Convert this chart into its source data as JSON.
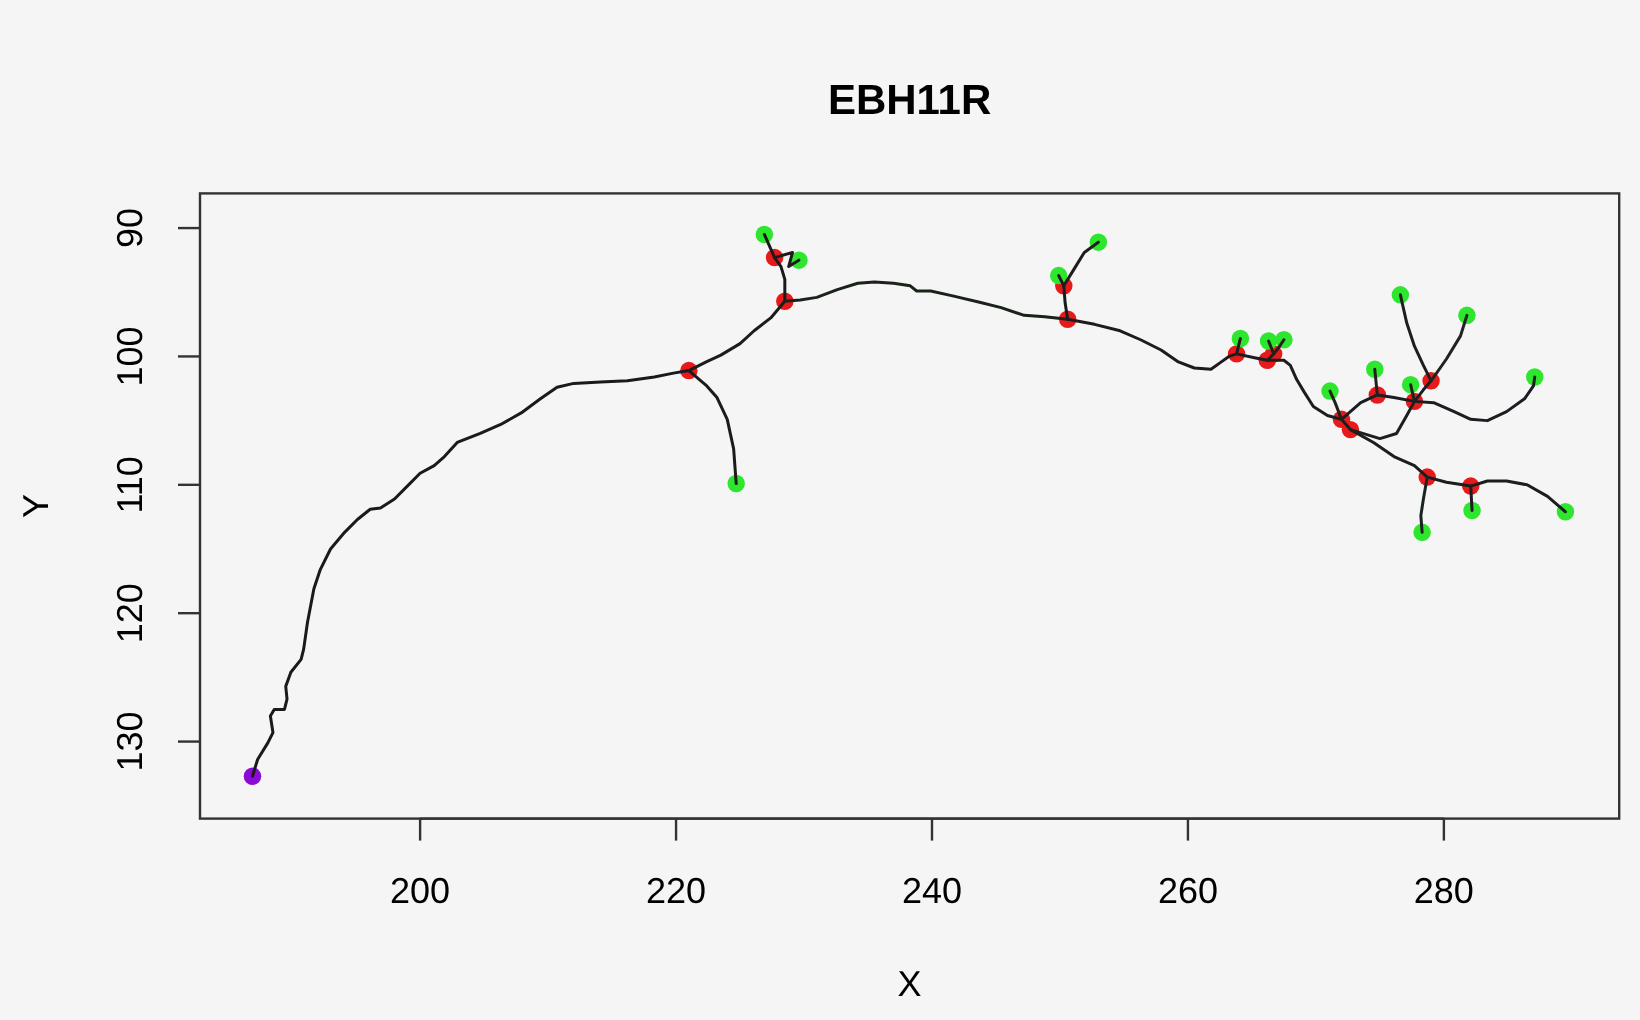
{
  "chart_data": {
    "type": "line",
    "title": "EBH11R",
    "xlabel": "X",
    "ylabel": "Y",
    "xlim": [
      182.8,
      293.7
    ],
    "ylim": [
      136.0,
      87.3
    ],
    "xticks": [
      200,
      220,
      240,
      260,
      280
    ],
    "yticks": [
      90,
      100,
      110,
      120,
      130
    ],
    "series": [
      {
        "color": "#1a1a1a",
        "x": [
          186.9,
          187.3,
          188.1,
          188.5,
          188.3,
          188.6,
          189.4,
          189.6,
          189.5,
          189.9,
          190.7,
          190.9,
          191.2,
          191.7,
          192.2,
          193.0,
          194.1,
          195.1,
          196.1,
          196.9,
          198.0,
          199.0,
          200.0,
          201.1,
          201.9,
          202.9,
          204.7,
          206.3,
          207.9,
          209.4,
          210.7,
          212.0,
          214.1,
          216.2,
          218.3,
          219.8,
          221.0
        ],
        "values": [
          132.7,
          131.4,
          130.1,
          129.3,
          128.0,
          127.5,
          127.5,
          126.7,
          125.7,
          124.6,
          123.6,
          122.8,
          120.7,
          118.1,
          116.6,
          115.0,
          113.7,
          112.7,
          111.9,
          111.8,
          111.1,
          110.1,
          109.1,
          108.5,
          107.8,
          106.7,
          106.0,
          105.3,
          104.4,
          103.3,
          102.4,
          102.1,
          102.0,
          101.9,
          101.6,
          101.3,
          101.1
        ]
      },
      {
        "color": "#1e1a1a",
        "x": [
          221.0,
          222.4,
          223.2,
          224.0,
          224.5,
          224.7
        ],
        "values": [
          101.1,
          102.3,
          103.2,
          104.9,
          107.2,
          109.9
        ]
      },
      {
        "color": "#1a1e1a",
        "x": [
          221.0,
          222.4,
          223.5,
          225.0,
          226.1,
          227.4,
          228.5
        ],
        "values": [
          101.1,
          100.4,
          99.9,
          99.0,
          98.0,
          97.0,
          95.7
        ]
      },
      {
        "color": "#1a1a1e",
        "x": [
          228.5,
          228.5,
          228.2,
          227.7,
          226.9
        ],
        "values": [
          95.7,
          94.0,
          93.0,
          92.3,
          90.5
        ]
      },
      {
        "color": "#221a1a",
        "x": [
          227.7,
          229.1,
          228.8,
          229.6
        ],
        "values": [
          92.3,
          91.9,
          93.0,
          92.5
        ]
      },
      {
        "color": "#1a221a",
        "x": [
          228.5,
          229.7,
          231.0,
          232.6,
          234.2,
          235.5,
          237.0,
          238.3,
          238.8,
          239.9,
          241.7,
          243.8,
          245.4,
          247.2,
          248.8,
          250.6
        ],
        "values": [
          95.7,
          95.6,
          95.4,
          94.8,
          94.3,
          94.2,
          94.3,
          94.5,
          94.9,
          94.9,
          95.3,
          95.8,
          96.2,
          96.8,
          96.9,
          97.1
        ]
      },
      {
        "color": "#1a1a22",
        "x": [
          250.6,
          250.4,
          250.3,
          249.9
        ],
        "values": [
          97.1,
          95.8,
          94.5,
          93.7
        ]
      },
      {
        "color": "#1e1e1a",
        "x": [
          250.3,
          251.1,
          251.9,
          253.0
        ],
        "values": [
          94.5,
          93.2,
          91.9,
          91.1
        ]
      },
      {
        "color": "#1e1a1e",
        "x": [
          250.6,
          252.7,
          254.7,
          256.3,
          257.9,
          259.2,
          260.5,
          261.8,
          262.5,
          263.2,
          263.8,
          264.1
        ],
        "values": [
          97.1,
          97.5,
          98.0,
          98.7,
          99.5,
          100.4,
          100.9,
          101.0,
          100.5,
          100.0,
          99.8,
          98.6
        ]
      },
      {
        "color": "#1a1e1e",
        "x": [
          263.8,
          265.2,
          266.2,
          267.5,
          268.0,
          268.5,
          269.1,
          269.8,
          270.9,
          272.0,
          272.7,
          274.5,
          276.1,
          277.7,
          278.7,
          280.2,
          282.1,
          283.4,
          284.9,
          286.5,
          288.1,
          289.5
        ],
        "values": [
          99.8,
          100.1,
          100.3,
          100.3,
          100.7,
          101.8,
          102.8,
          103.9,
          104.6,
          104.9,
          105.7,
          106.7,
          107.8,
          108.5,
          109.4,
          109.8,
          110.1,
          109.7,
          109.7,
          110.0,
          110.9,
          112.1
        ]
      },
      {
        "color": "#221e1a",
        "x": [
          266.2,
          266.7,
          267.1,
          267.5
        ],
        "values": [
          100.3,
          99.8,
          99.3,
          98.7
        ]
      },
      {
        "color": "#22221a",
        "x": [
          266.7,
          266.3
        ],
        "values": [
          99.8,
          98.8
        ]
      },
      {
        "color": "#1a2222",
        "x": [
          278.7,
          278.4,
          278.2,
          278.3
        ],
        "values": [
          109.4,
          111.1,
          112.4,
          113.7
        ]
      },
      {
        "color": "#221a22",
        "x": [
          282.1,
          282.2
        ],
        "values": [
          110.1,
          112.0
        ]
      },
      {
        "color": "#1e221a",
        "x": [
          272.0,
          271.5,
          271.1
        ],
        "values": [
          104.9,
          103.6,
          102.7
        ]
      },
      {
        "color": "#1a1e22",
        "x": [
          272.0,
          273.5,
          274.8,
          276.1,
          277.7,
          279.2,
          280.8,
          282.1,
          283.4,
          284.9,
          286.3,
          287.0,
          287.1
        ],
        "values": [
          104.9,
          103.6,
          103.0,
          103.2,
          103.5,
          103.6,
          104.3,
          104.9,
          105.0,
          104.3,
          103.3,
          102.3,
          101.6
        ]
      },
      {
        "color": "#221e1e",
        "x": [
          274.8,
          274.6
        ],
        "values": [
          103.0,
          101.0
        ]
      },
      {
        "color": "#1e221e",
        "x": [
          277.7,
          277.4
        ],
        "values": [
          103.5,
          102.2
        ]
      },
      {
        "color": "#1e1e22",
        "x": [
          277.7,
          278.4,
          279.0,
          278.4,
          277.7,
          277.1,
          276.6
        ],
        "values": [
          103.5,
          102.6,
          101.9,
          100.7,
          99.2,
          97.4,
          95.2
        ]
      },
      {
        "color": "#222222",
        "x": [
          279.0,
          280.2,
          281.3,
          281.8
        ],
        "values": [
          101.9,
          100.2,
          98.4,
          96.8
        ]
      },
      {
        "color": "#1e1e1e",
        "x": [
          277.7,
          277.1,
          276.3,
          275.0,
          272.7
        ],
        "values": [
          103.5,
          104.6,
          106.0,
          106.4,
          105.7
        ]
      },
      {
        "type": "scatter",
        "marker": "circle",
        "color": "#e61a1a",
        "x": [
          221.0,
          228.5,
          227.7,
          250.6,
          250.3,
          263.8,
          266.2,
          266.7,
          272.0,
          272.7,
          278.7,
          282.1,
          274.8,
          277.7,
          279.0
        ],
        "values": [
          101.1,
          95.7,
          92.3,
          97.1,
          94.5,
          99.8,
          100.3,
          99.8,
          104.9,
          105.7,
          109.4,
          110.1,
          103.0,
          103.5,
          101.9
        ]
      },
      {
        "type": "scatter",
        "marker": "circle",
        "color": "#2ee62e",
        "x": [
          224.7,
          226.9,
          229.6,
          249.9,
          253.0,
          264.1,
          266.3,
          267.5,
          289.5,
          278.3,
          282.2,
          271.1,
          274.6,
          277.4,
          276.6,
          281.8,
          287.1
        ],
        "values": [
          109.9,
          90.5,
          92.5,
          93.7,
          91.1,
          98.6,
          98.8,
          98.7,
          112.1,
          113.7,
          112.0,
          102.7,
          101.0,
          102.2,
          95.2,
          96.8,
          101.6
        ]
      },
      {
        "type": "scatter",
        "marker": "circle",
        "color": "#8a0ad6",
        "x": [
          186.9
        ],
        "values": [
          132.7
        ]
      }
    ]
  }
}
